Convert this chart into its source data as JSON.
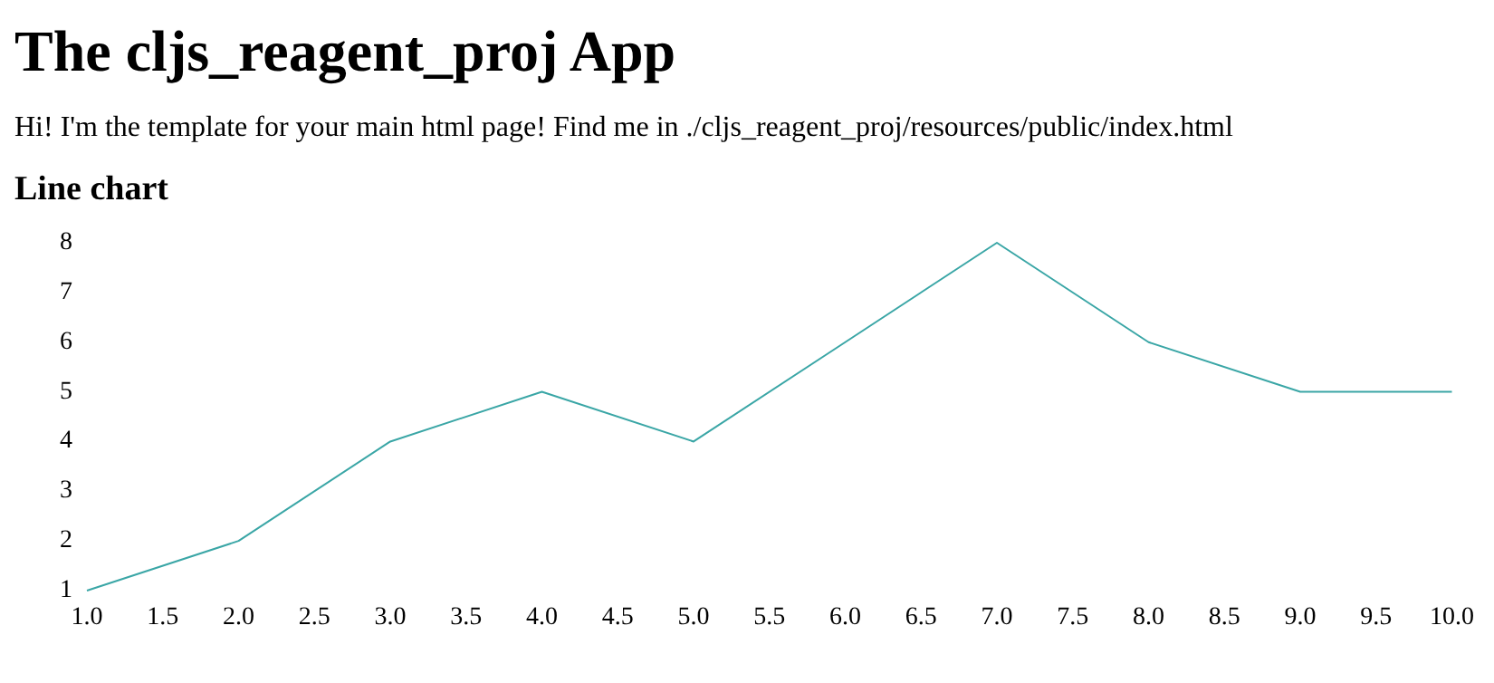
{
  "chart_data": {
    "type": "line",
    "title": "The cljs_reagent_proj App",
    "subtitle": "Hi! I'm the template for your main html page! Find me in ./cljs_reagent_proj/resources/public/index.html",
    "annotations": [
      "Line chart"
    ],
    "x": [
      1,
      2,
      3,
      4,
      5,
      6,
      7,
      8,
      9,
      10
    ],
    "series": [
      {
        "color": "#3aa6a6",
        "values": [
          1,
          2,
          4,
          5,
          4,
          6,
          8,
          6,
          5,
          5
        ]
      }
    ],
    "xlim": [
      1,
      10
    ],
    "ylim": [
      1,
      8
    ],
    "xticks": [
      {
        "value": 1,
        "label": "1.0"
      },
      {
        "value": 1.5,
        "label": "1.5"
      },
      {
        "value": 2,
        "label": "2.0"
      },
      {
        "value": 2.5,
        "label": "2.5"
      },
      {
        "value": 3,
        "label": "3.0"
      },
      {
        "value": 3.5,
        "label": "3.5"
      },
      {
        "value": 4,
        "label": "4.0"
      },
      {
        "value": 4.5,
        "label": "4.5"
      },
      {
        "value": 5,
        "label": "5.0"
      },
      {
        "value": 5.5,
        "label": "5.5"
      },
      {
        "value": 6,
        "label": "6.0"
      },
      {
        "value": 6.5,
        "label": "6.5"
      },
      {
        "value": 7,
        "label": "7.0"
      },
      {
        "value": 7.5,
        "label": "7.5"
      },
      {
        "value": 8,
        "label": "8.0"
      },
      {
        "value": 8.5,
        "label": "8.5"
      },
      {
        "value": 9,
        "label": "9.0"
      },
      {
        "value": 9.5,
        "label": "9.5"
      },
      {
        "value": 10,
        "label": "10.0"
      }
    ],
    "yticks": [
      1,
      2,
      3,
      4,
      5,
      6,
      7,
      8
    ],
    "grid": false,
    "marker": "none",
    "line_style": "solid"
  }
}
